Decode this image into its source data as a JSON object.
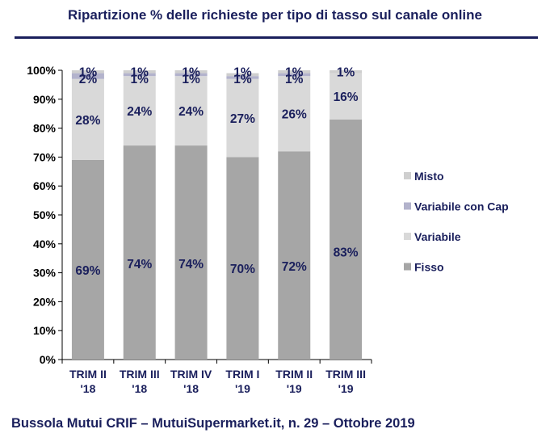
{
  "title": "Ripartizione % delle richieste per tipo di tasso sul canale online",
  "footer": "Bussola Mutui CRIF – MutuiSupermarket.it, n. 29 – Ottobre 2019",
  "chart_data": {
    "type": "bar",
    "stacked": true,
    "title": "Ripartizione % delle richieste per tipo di tasso sul canale online",
    "categories": [
      [
        "TRIM II",
        "'18"
      ],
      [
        "TRIM III",
        "'18"
      ],
      [
        "TRIM IV",
        "'18"
      ],
      [
        "TRIM I",
        "'19"
      ],
      [
        "TRIM II",
        "'19"
      ],
      [
        "TRIM III",
        "'19"
      ]
    ],
    "ylim": [
      0,
      100
    ],
    "yticks": [
      "0%",
      "10%",
      "20%",
      "30%",
      "40%",
      "50%",
      "60%",
      "70%",
      "80%",
      "90%",
      "100%"
    ],
    "legend_position": "right",
    "series": [
      {
        "name": "Fisso",
        "color": "#a6a6a6",
        "values": [
          69,
          74,
          74,
          70,
          72,
          83
        ],
        "labels": [
          "69%",
          "74%",
          "74%",
          "70%",
          "72%",
          "83%"
        ]
      },
      {
        "name": "Variabile",
        "color": "#d9d9d9",
        "values": [
          28,
          24,
          24,
          27,
          26,
          16
        ],
        "labels": [
          "28%",
          "24%",
          "24%",
          "27%",
          "26%",
          "16%"
        ]
      },
      {
        "name": "Variabile con Cap",
        "color": "#b3b3cc",
        "values": [
          2,
          1,
          1,
          1,
          1,
          0
        ],
        "labels": [
          "2%",
          "1%",
          "1%",
          "1%",
          "1%",
          ""
        ]
      },
      {
        "name": "Misto",
        "color": "#cfcfcf",
        "values": [
          1,
          1,
          1,
          1,
          1,
          1
        ],
        "labels": [
          "1%",
          "1%",
          "1%",
          "1%",
          "1%",
          "1%"
        ]
      }
    ]
  }
}
